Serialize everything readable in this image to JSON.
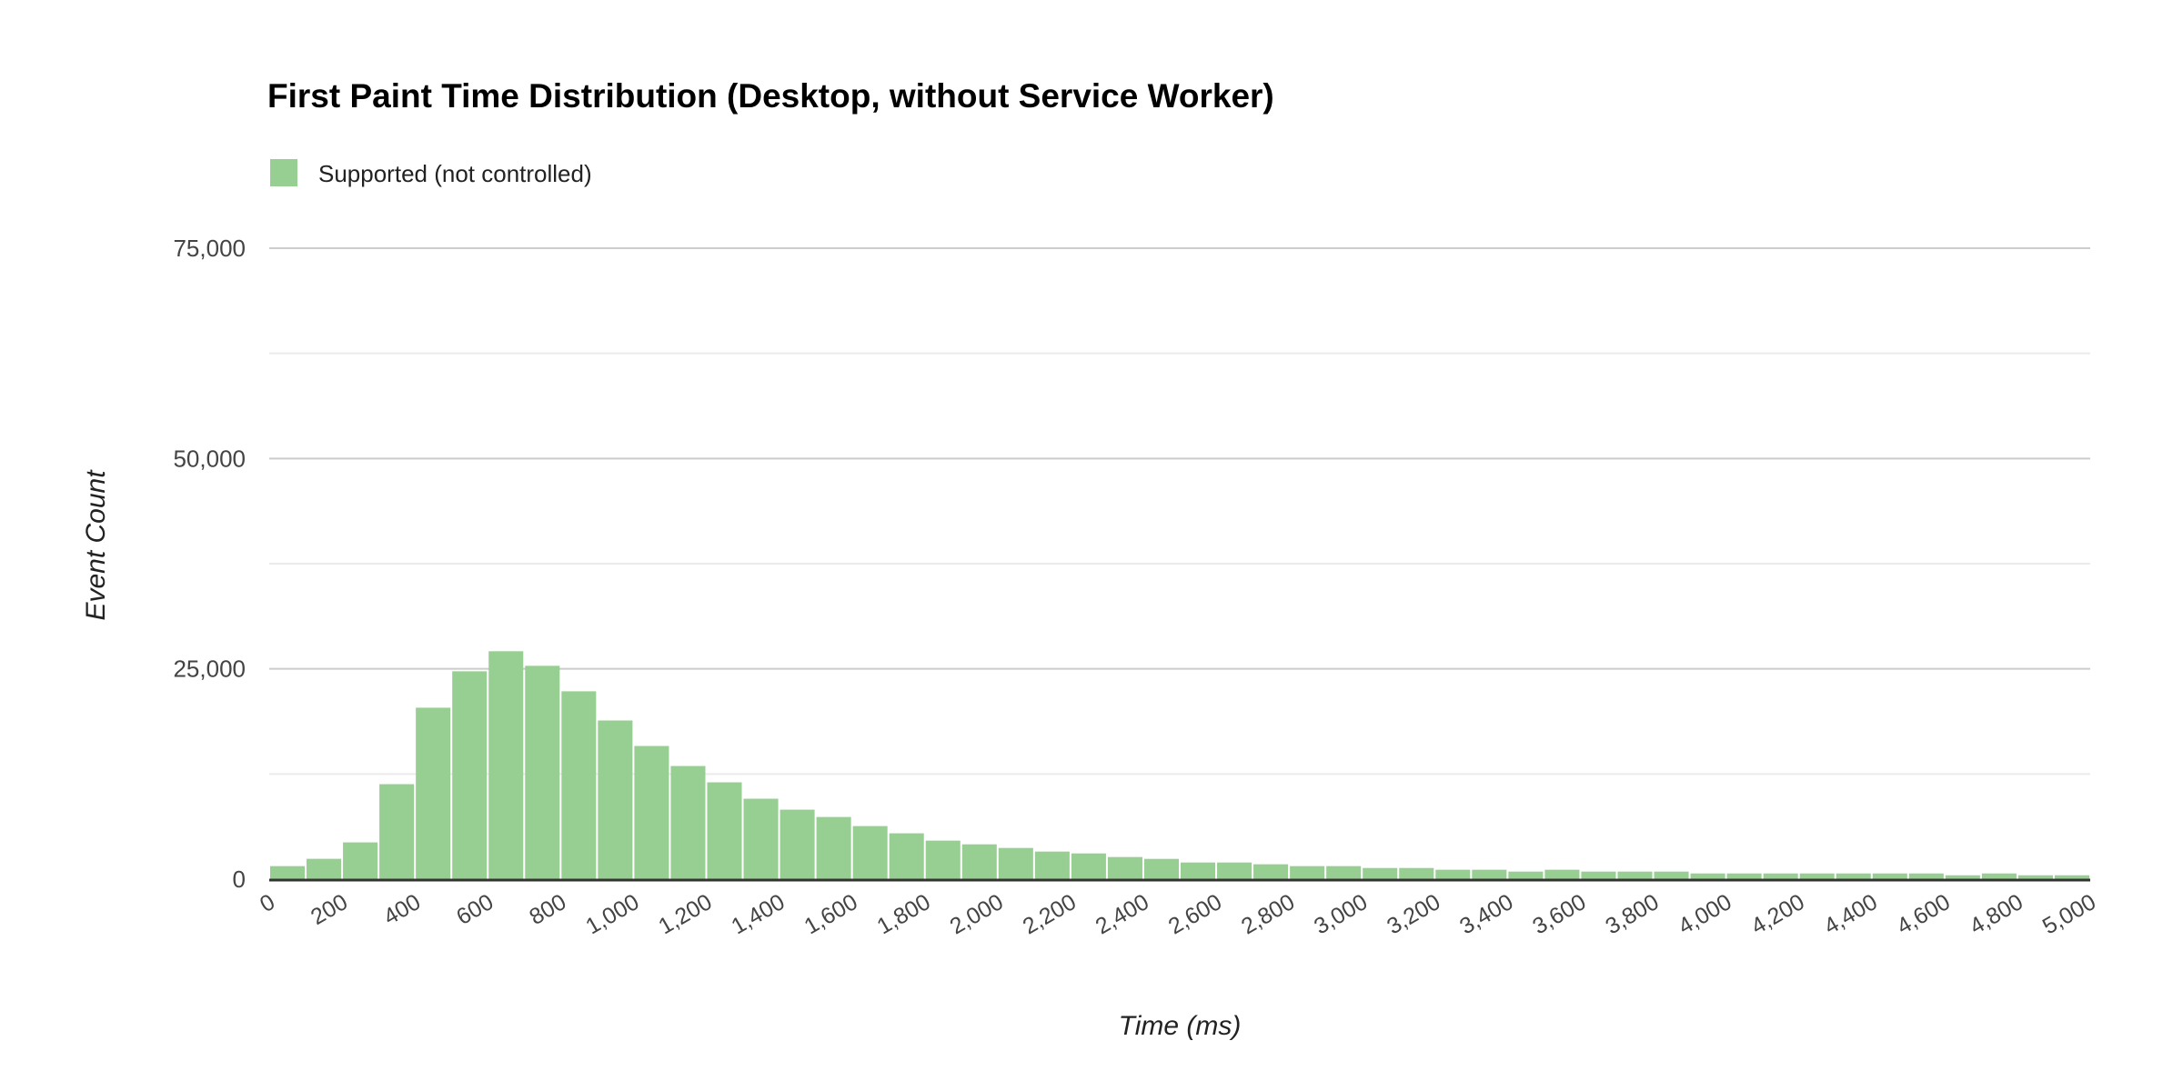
{
  "chart_data": {
    "type": "bar",
    "title": "First Paint Time Distribution (Desktop, without Service Worker)",
    "xlabel": "Time (ms)",
    "ylabel": "Event Count",
    "legend": {
      "position": "top-left",
      "entries": [
        "Supported (not controlled)"
      ]
    },
    "grid": true,
    "xlim": [
      0,
      5000
    ],
    "ylim": [
      0,
      75000
    ],
    "bin_width": 100,
    "x_ticks": [
      "0",
      "200",
      "400",
      "600",
      "800",
      "1,000",
      "1,200",
      "1,400",
      "1,600",
      "1,800",
      "2,000",
      "2,200",
      "2,400",
      "2,600",
      "2,800",
      "3,000",
      "3,200",
      "3,400",
      "3,600",
      "3,800",
      "4,000",
      "4,200",
      "4,400",
      "4,600",
      "4,800",
      "5,000"
    ],
    "y_ticks": [
      "0",
      "25,000",
      "50,000",
      "75,000"
    ],
    "series": [
      {
        "name": "Supported (not controlled)",
        "color": "#97cf92",
        "values": [
          1550,
          2420,
          4370,
          11290,
          20380,
          24710,
          27090,
          25360,
          22330,
          18860,
          15830,
          13450,
          11510,
          9560,
          8260,
          7390,
          6310,
          5450,
          4580,
          4140,
          3710,
          3280,
          3060,
          2630,
          2410,
          1980,
          1980,
          1770,
          1550,
          1550,
          1330,
          1330,
          1120,
          1120,
          900,
          1120,
          900,
          900,
          900,
          680,
          680,
          680,
          680,
          680,
          680,
          680,
          460,
          680,
          460,
          460
        ]
      }
    ]
  }
}
